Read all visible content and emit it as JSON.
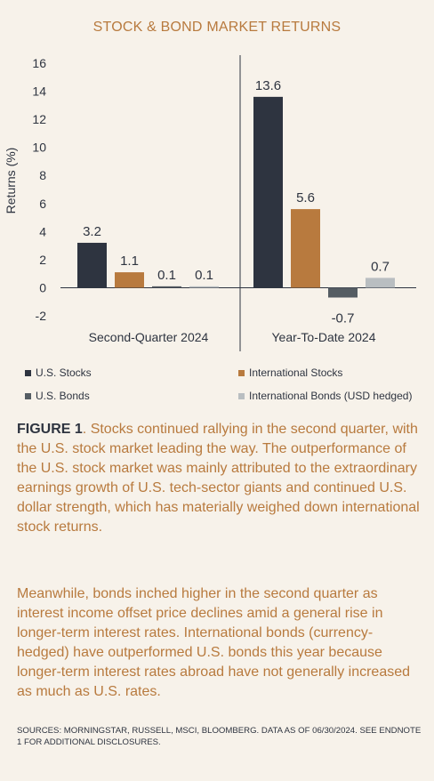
{
  "title": "STOCK & BOND MARKET RETURNS",
  "chart_data": {
    "type": "bar",
    "ylabel": "Returns (%)",
    "ylim": [
      -2,
      16
    ],
    "yticks": [
      16,
      14,
      12,
      10,
      8,
      6,
      4,
      2,
      0,
      -2
    ],
    "categories": [
      "Second-Quarter 2024",
      "Year-To-Date 2024"
    ],
    "series": [
      {
        "name": "U.S. Stocks",
        "color": "#2e3440",
        "values": [
          3.2,
          13.6
        ],
        "labels": [
          "3.2",
          "13.6"
        ]
      },
      {
        "name": "International Stocks",
        "color": "#b87a3e",
        "values": [
          1.1,
          5.6
        ],
        "labels": [
          "1.1",
          "5.6"
        ]
      },
      {
        "name": "U.S. Bonds",
        "color": "#555d63",
        "values": [
          0.1,
          -0.7
        ],
        "labels": [
          "0.1",
          "-0.7"
        ]
      },
      {
        "name": "International Bonds (USD hedged)",
        "color": "#b9bec1",
        "values": [
          0.1,
          0.7
        ],
        "labels": [
          "0.1",
          "0.7"
        ]
      }
    ]
  },
  "caption": {
    "figure_label": "FIGURE 1",
    "text": ". Stocks continued rallying in the second quarter, with the U.S. stock market leading the way. The outperformance of the U.S. stock market was mainly attributed to the extraordinary earnings growth of U.S. tech-sector giants and continued U.S. dollar strength, which has materially weighed down international stock returns."
  },
  "paragraph": "Meanwhile, bonds inched higher in the second quarter as interest income offset price declines amid a general rise in longer-term interest rates. International bonds (currency-hedged) have outperformed U.S. bonds this year because longer-term interest rates abroad have not generally increased as much as U.S. rates.",
  "sources": "SOURCES: MORNINGSTAR, RUSSELL, MSCI, BLOOMBERG. DATA AS OF 06/30/2024. SEE ENDNOTE 1 FOR ADDITIONAL DISCLOSURES."
}
